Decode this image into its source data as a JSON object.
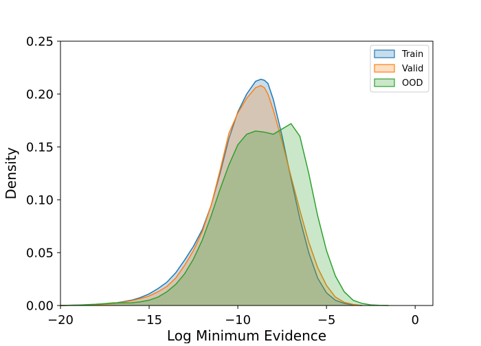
{
  "chart_data": {
    "type": "area",
    "title": "",
    "xlabel": "Log Minimum Evidence",
    "ylabel": "Density",
    "xlim": [
      -20,
      1
    ],
    "ylim": [
      0,
      0.25
    ],
    "x_ticks": [
      -20,
      -15,
      -10,
      -5,
      0
    ],
    "x_tick_labels": [
      "−20",
      "−15",
      "−10",
      "−5",
      "0"
    ],
    "y_ticks": [
      0.0,
      0.05,
      0.1,
      0.15,
      0.2,
      0.25
    ],
    "y_tick_labels": [
      "0.00",
      "0.05",
      "0.10",
      "0.15",
      "0.20",
      "0.25"
    ],
    "grid": false,
    "legend": {
      "placement": "top-right",
      "entries": [
        "Train",
        "Valid",
        "OOD"
      ]
    },
    "series": [
      {
        "name": "Train",
        "color": "#1f77b4",
        "x": [
          -20,
          -19,
          -18,
          -17,
          -16,
          -15.5,
          -15,
          -14.5,
          -14,
          -13.5,
          -13,
          -12.5,
          -12,
          -11.5,
          -11,
          -10.5,
          -10,
          -9.5,
          -9,
          -8.7,
          -8.5,
          -8.3,
          -8,
          -7.5,
          -7,
          -6.5,
          -6,
          -5.5,
          -5,
          -4.5,
          -4,
          -3.5,
          -3
        ],
        "y": [
          0.0,
          0.0003,
          0.0008,
          0.002,
          0.005,
          0.0075,
          0.011,
          0.016,
          0.022,
          0.031,
          0.043,
          0.056,
          0.072,
          0.095,
          0.125,
          0.158,
          0.183,
          0.2,
          0.212,
          0.214,
          0.213,
          0.21,
          0.195,
          0.16,
          0.12,
          0.082,
          0.05,
          0.026,
          0.012,
          0.005,
          0.002,
          0.0005,
          0.0
        ]
      },
      {
        "name": "Valid",
        "color": "#ff7f0e",
        "x": [
          -20,
          -19,
          -18,
          -17,
          -16,
          -15.5,
          -15,
          -14.5,
          -14,
          -13.5,
          -13,
          -12.5,
          -12,
          -11.5,
          -11,
          -10.5,
          -10,
          -9.5,
          -9,
          -8.7,
          -8.5,
          -8.3,
          -8,
          -7.5,
          -7,
          -6.5,
          -6,
          -5.5,
          -5,
          -4.5,
          -4,
          -3.5,
          -3
        ],
        "y": [
          0.0,
          0.0003,
          0.0007,
          0.0018,
          0.0045,
          0.0065,
          0.009,
          0.013,
          0.018,
          0.026,
          0.038,
          0.052,
          0.07,
          0.095,
          0.128,
          0.163,
          0.182,
          0.196,
          0.206,
          0.208,
          0.206,
          0.2,
          0.185,
          0.155,
          0.122,
          0.09,
          0.06,
          0.036,
          0.019,
          0.008,
          0.003,
          0.001,
          0.0
        ]
      },
      {
        "name": "OOD",
        "color": "#2ca02c",
        "x": [
          -20,
          -19,
          -18,
          -17.5,
          -17,
          -16.5,
          -16,
          -15.5,
          -15,
          -14.5,
          -14,
          -13.5,
          -13,
          -12.5,
          -12,
          -11.5,
          -11,
          -10.5,
          -10,
          -9.5,
          -9,
          -8.5,
          -8,
          -7.5,
          -7,
          -6.5,
          -6,
          -5.5,
          -5,
          -4.5,
          -4,
          -3.5,
          -3,
          -2.5,
          -2,
          -1.5
        ],
        "y": [
          0.0,
          0.0004,
          0.0012,
          0.0018,
          0.0025,
          0.0024,
          0.0025,
          0.0035,
          0.005,
          0.008,
          0.013,
          0.02,
          0.03,
          0.044,
          0.062,
          0.085,
          0.11,
          0.133,
          0.152,
          0.162,
          0.165,
          0.164,
          0.162,
          0.167,
          0.172,
          0.16,
          0.125,
          0.085,
          0.052,
          0.028,
          0.013,
          0.005,
          0.002,
          0.0006,
          0.0002,
          0.0
        ]
      }
    ]
  }
}
